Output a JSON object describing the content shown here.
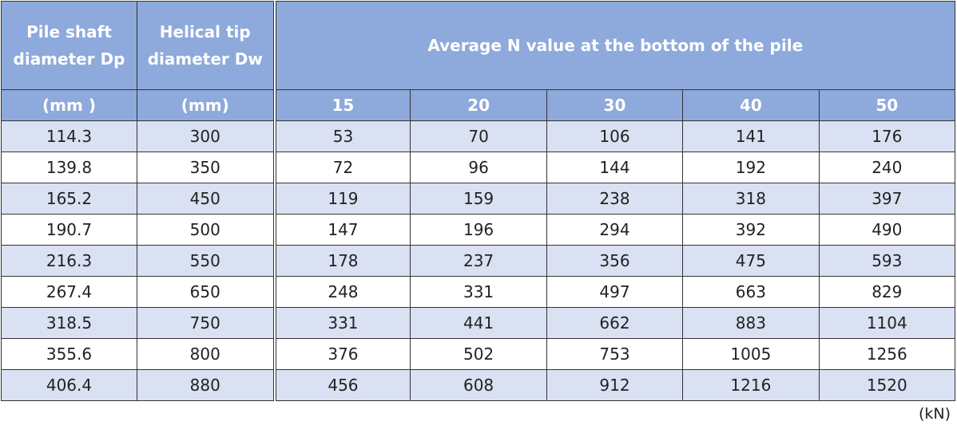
{
  "table": {
    "header": {
      "columns": [
        [
          "Pile shaft",
          "diameter Dp"
        ],
        [
          "Helical tip",
          "diameter Dw"
        ]
      ],
      "group": "Average N value at the bottom of the pile",
      "units": [
        "(mm )",
        "(mm)"
      ],
      "n_values": [
        15,
        20,
        30,
        40,
        50
      ]
    },
    "rows": [
      [
        114.3,
        300,
        53,
        70,
        106,
        141,
        176
      ],
      [
        139.8,
        350,
        72,
        96,
        144,
        192,
        240
      ],
      [
        165.2,
        450,
        119,
        159,
        238,
        318,
        397
      ],
      [
        190.7,
        500,
        147,
        196,
        294,
        392,
        490
      ],
      [
        216.3,
        550,
        178,
        237,
        356,
        475,
        593
      ],
      [
        267.4,
        650,
        248,
        331,
        497,
        663,
        829
      ],
      [
        318.5,
        750,
        331,
        441,
        662,
        883,
        1104
      ],
      [
        355.6,
        800,
        376,
        502,
        753,
        1005,
        1256
      ],
      [
        406.4,
        880,
        456,
        608,
        912,
        1216,
        1520
      ]
    ]
  },
  "note": "(kN)"
}
